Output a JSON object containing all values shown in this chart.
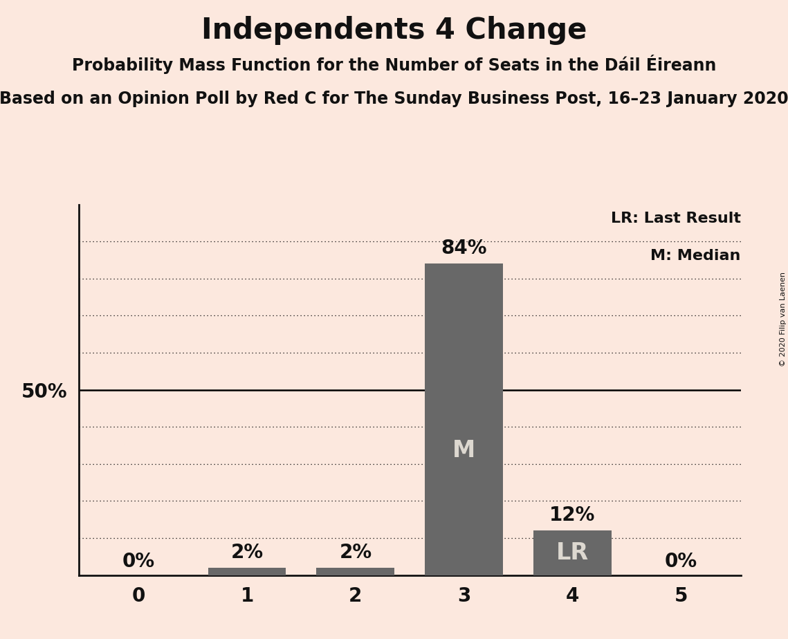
{
  "title": "Independents 4 Change",
  "subtitle": "Probability Mass Function for the Number of Seats in the Dáil Éireann",
  "sub_subtitle": "Based on an Opinion Poll by Red C for The Sunday Business Post, 16–23 January 2020",
  "copyright": "© 2020 Filip van Laenen",
  "categories": [
    0,
    1,
    2,
    3,
    4,
    5
  ],
  "values": [
    0,
    2,
    2,
    84,
    12,
    0
  ],
  "bar_color": "#686868",
  "background_color": "#fce8de",
  "bar_labels": [
    "0%",
    "2%",
    "2%",
    "84%",
    "12%",
    "0%"
  ],
  "bar_inner_labels": [
    "",
    "",
    "",
    "M",
    "LR",
    ""
  ],
  "inner_label_color": "#ddd8d0",
  "legend_lines": [
    "LR: Last Result",
    "M: Median"
  ],
  "y_tick_label": "50%",
  "y_tick_value": 50,
  "yticks_dotted": [
    10,
    20,
    30,
    40,
    60,
    70,
    80,
    90
  ],
  "ytick_solid": 50,
  "ylim": [
    0,
    100
  ],
  "xlim": [
    -0.55,
    5.55
  ],
  "title_fontsize": 30,
  "subtitle_fontsize": 17,
  "sub_subtitle_fontsize": 17,
  "bar_label_fontsize": 20,
  "inner_label_fontsize": 24,
  "legend_fontsize": 16,
  "axis_tick_fontsize": 20,
  "ylabel_fontsize": 20,
  "text_color": "#111111",
  "spine_linewidth": 2.0,
  "bar_width": 0.72
}
